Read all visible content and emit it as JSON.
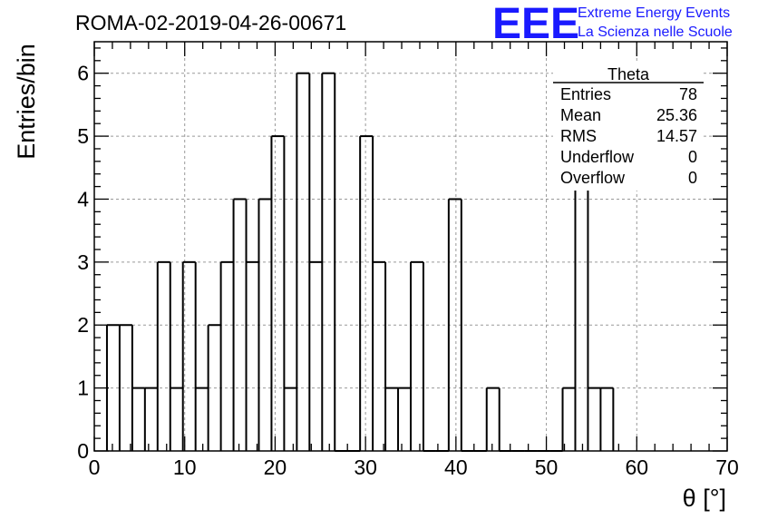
{
  "header": {
    "run_id": "ROMA-02-2019-04-26-00671",
    "logo_text": "EEE",
    "logo_line1": "Extreme Energy Events",
    "logo_line2": "La Scienza nelle Scuole",
    "logo_color": "#1a1aff"
  },
  "stats": {
    "title": "Theta",
    "rows": [
      {
        "label": "Entries",
        "value": "78"
      },
      {
        "label": "Mean",
        "value": "25.36"
      },
      {
        "label": "RMS",
        "value": "14.57"
      },
      {
        "label": "Underflow",
        "value": "0"
      },
      {
        "label": "Overflow",
        "value": "0"
      }
    ]
  },
  "chart_data": {
    "type": "bar",
    "subtype": "histogram",
    "title": "ROMA-02-2019-04-26-00671",
    "xlabel": "θ [°]",
    "ylabel": "Entries/bin",
    "xlim": [
      0,
      70
    ],
    "ylim": [
      0,
      6.5
    ],
    "bin_width": 1.4,
    "bin_start": 1.4,
    "bin_values": [
      2,
      2,
      1,
      1,
      3,
      1,
      3,
      1,
      2,
      3,
      4,
      3,
      4,
      5,
      1,
      6,
      3,
      6,
      0,
      0,
      5,
      3,
      1,
      1,
      3,
      0,
      0,
      4,
      0,
      0,
      1,
      0,
      0,
      0,
      0,
      0,
      1,
      6,
      1,
      1
    ],
    "x_ticks": [
      0,
      10,
      20,
      30,
      40,
      50,
      60,
      70
    ],
    "y_ticks": [
      0,
      1,
      2,
      3,
      4,
      5,
      6
    ],
    "grid": true,
    "stats_box_placement": "top-right",
    "line_color": "#000000"
  }
}
